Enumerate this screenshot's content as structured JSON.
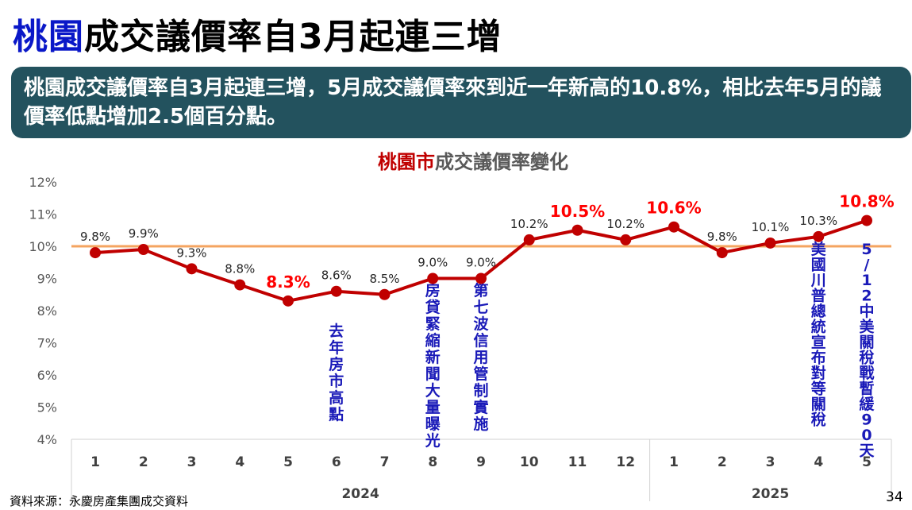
{
  "title": {
    "part1": "桃園",
    "part2": "成交議價率自3月起連三增"
  },
  "banner": {
    "text": "桃園成交議價率自3月起連三增，5月成交議價率來到近一年新高的10.8%，相比去年5月的議價率低點增加2.5個百分點。"
  },
  "chart_data": {
    "type": "line",
    "title": {
      "part1": "桃園市",
      "part2": "成交議價率變化"
    },
    "categories": [
      "1",
      "2",
      "3",
      "4",
      "5",
      "6",
      "7",
      "8",
      "9",
      "10",
      "11",
      "12",
      "1",
      "2",
      "3",
      "4",
      "5"
    ],
    "year_groups": [
      {
        "label": "2024",
        "start": 0,
        "end": 11
      },
      {
        "label": "2025",
        "start": 12,
        "end": 16
      }
    ],
    "series": [
      {
        "values": [
          9.8,
          9.9,
          9.3,
          8.8,
          8.3,
          8.6,
          8.5,
          9.0,
          9.0,
          10.2,
          10.5,
          10.2,
          10.6,
          9.8,
          10.1,
          10.3,
          10.8
        ],
        "labels": [
          "9.8%",
          "9.9%",
          "9.3%",
          "8.8%",
          "8.3%",
          "8.6%",
          "8.5%",
          "9.0%",
          "9.0%",
          "10.2%",
          "10.5%",
          "10.2%",
          "10.6%",
          "9.8%",
          "10.1%",
          "10.3%",
          "10.8%"
        ],
        "highlight": [
          false,
          false,
          false,
          false,
          true,
          false,
          false,
          false,
          false,
          false,
          true,
          false,
          true,
          false,
          false,
          false,
          true
        ]
      }
    ],
    "yticks": [
      "4%",
      "5%",
      "6%",
      "7%",
      "8%",
      "9%",
      "10%",
      "11%",
      "12%"
    ],
    "ylim": [
      4,
      12
    ],
    "reference_line": 10,
    "annotations": [
      {
        "index": 5,
        "text": "去年房市高點"
      },
      {
        "index": 7,
        "text": "房貸緊縮新聞大量曝光"
      },
      {
        "index": 8,
        "text": "第七波信用管制實施"
      },
      {
        "index": 15,
        "text": "美國川普總統宣布對等關稅"
      },
      {
        "index": 16,
        "text": "5/12中美關稅戰暫緩90天"
      }
    ],
    "colors": {
      "line": "#c00000",
      "highlight": "#ff0000",
      "reference": "#f4a460",
      "annotation": "#1a1ab8",
      "title_accent": "#c00000",
      "title_rest": "#595959"
    },
    "grid": false
  },
  "footer": {
    "source": "資料來源：永慶房產集團成交資料",
    "page": "34"
  }
}
